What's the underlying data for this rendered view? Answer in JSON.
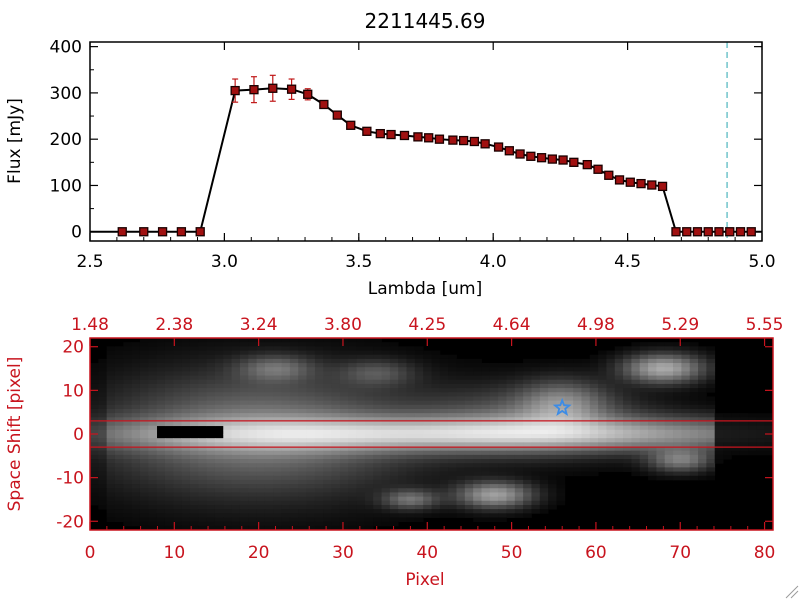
{
  "colors": {
    "axis": "#000000",
    "marker": "#a01010",
    "errorbar": "#c01818",
    "accent_red": "#c8141e",
    "star": "#3c8ce6",
    "cutoff_line": "#2aa6b0"
  },
  "icons": {
    "marker_star": "star-icon"
  },
  "chart_data": [
    {
      "type": "line",
      "title": "2211445.69",
      "xlabel": "Lambda [um]",
      "ylabel": "Flux [mJy]",
      "xlim": [
        2.5,
        5.0
      ],
      "ylim": [
        -20,
        410
      ],
      "xticks": [
        "2.5",
        "3.0",
        "3.5",
        "4.0",
        "4.5",
        "5.0"
      ],
      "yticks": [
        "0",
        "100",
        "200",
        "300",
        "400"
      ],
      "xtick_values": [
        2.5,
        3.0,
        3.5,
        4.0,
        4.5,
        5.0
      ],
      "ytick_values": [
        0,
        100,
        200,
        300,
        400
      ],
      "grid": false,
      "vertical_line_x": 4.87,
      "series": [
        {
          "x": [
            2.62,
            2.7,
            2.77,
            2.84,
            2.91,
            3.04,
            3.11,
            3.18,
            3.25,
            3.31,
            3.37,
            3.42,
            3.47,
            3.53,
            3.58,
            3.62,
            3.67,
            3.72,
            3.76,
            3.8,
            3.85,
            3.89,
            3.93,
            3.97,
            4.02,
            4.06,
            4.1,
            4.14,
            4.18,
            4.22,
            4.26,
            4.3,
            4.35,
            4.39,
            4.43,
            4.47,
            4.51,
            4.55,
            4.59,
            4.63,
            4.68,
            4.72,
            4.76,
            4.8,
            4.84,
            4.88,
            4.92,
            4.96
          ],
          "y": [
            0,
            0,
            0,
            0,
            0,
            305,
            307,
            310,
            308,
            297,
            275,
            252,
            230,
            217,
            212,
            210,
            208,
            205,
            203,
            200,
            198,
            197,
            195,
            190,
            183,
            175,
            168,
            163,
            160,
            157,
            155,
            150,
            145,
            135,
            122,
            112,
            107,
            104,
            101,
            98,
            0,
            0,
            0,
            0,
            0,
            0,
            0,
            0
          ],
          "error": [
            0,
            0,
            0,
            0,
            0,
            25,
            28,
            28,
            22,
            12,
            6,
            4,
            3,
            2,
            2,
            2,
            2,
            2,
            2,
            2,
            2,
            2,
            2,
            2,
            2,
            2,
            2,
            2,
            2,
            2,
            2,
            2,
            2,
            2,
            2,
            2,
            2,
            2,
            2,
            2,
            0,
            0,
            0,
            0,
            0,
            0,
            0,
            0
          ]
        }
      ]
    },
    {
      "type": "heatmap",
      "xlabel": "Pixel",
      "ylabel": "Space Shift [pixel]",
      "xlim": [
        0,
        81
      ],
      "ylim": [
        -22,
        22
      ],
      "xticks": [
        "0",
        "10",
        "20",
        "30",
        "40",
        "50",
        "60",
        "70",
        "80"
      ],
      "xtick_values": [
        0,
        10,
        20,
        30,
        40,
        50,
        60,
        70,
        80
      ],
      "yticks": [
        "20",
        "10",
        "0",
        "-10",
        "-20"
      ],
      "ytick_values": [
        20,
        10,
        0,
        -10,
        -20
      ],
      "top_axis_ticks": [
        "1.48",
        "2.38",
        "3.24",
        "3.80",
        "4.25",
        "4.64",
        "4.98",
        "5.29",
        "5.55"
      ],
      "horizontal_lines_y": [
        3,
        -3
      ],
      "star_marker": [
        56,
        6
      ],
      "sources": [
        {
          "x": 45,
          "y": 0,
          "sx": 30,
          "sy": 2.6,
          "amp": 0.65
        },
        {
          "x": 20,
          "y": 0,
          "sx": 12,
          "sy": 9,
          "amp": 0.42
        },
        {
          "x": 52,
          "y": 3,
          "sx": 9,
          "sy": 5,
          "amp": 0.28
        },
        {
          "x": 56,
          "y": 7,
          "sx": 3.5,
          "sy": 3.5,
          "amp": 0.35
        },
        {
          "x": 68,
          "y": 15,
          "sx": 3.2,
          "sy": 2.2,
          "amp": 0.6
        },
        {
          "x": 48,
          "y": -14,
          "sx": 3,
          "sy": 2,
          "amp": 0.55
        },
        {
          "x": 70,
          "y": -6,
          "sx": 2.5,
          "sy": 1.8,
          "amp": 0.4
        },
        {
          "x": 38,
          "y": -15,
          "sx": 2.2,
          "sy": 1.5,
          "amp": 0.35
        },
        {
          "x": 22,
          "y": 15,
          "sx": 3,
          "sy": 2,
          "amp": 0.3
        },
        {
          "x": 34,
          "y": 14,
          "sx": 3,
          "sy": 2,
          "amp": 0.22
        }
      ],
      "saturated_blob": {
        "x0": 8,
        "x1": 16,
        "y0": -1,
        "y1": 2
      }
    }
  ]
}
